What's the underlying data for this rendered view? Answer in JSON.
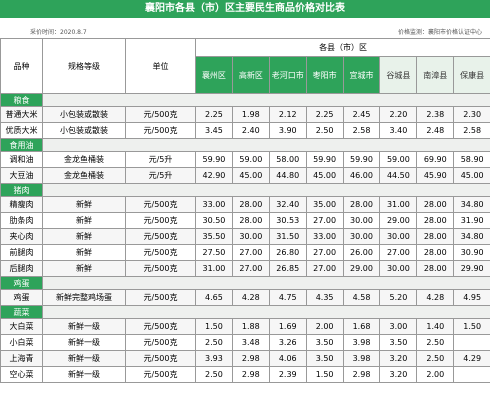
{
  "title": "襄阳市各县（市）区主要民生商品价格对比表",
  "date": "采价时间：2020.8.7",
  "source": "价格监测：襄阳市价格认证中心",
  "header": {
    "variety": "品种",
    "spec": "规格等级",
    "unit": "单位",
    "region_group": "各县（市）区",
    "regions": [
      "襄州区",
      "高新区",
      "老河口市",
      "枣阳市",
      "宜城市",
      "谷城县",
      "南漳县",
      "保康县"
    ]
  },
  "sections": [
    {
      "name": "粮食",
      "rows": [
        {
          "variety": "普通大米",
          "spec": "小包装或散装",
          "unit": "元/500克",
          "prices": [
            "2.25",
            "1.98",
            "2.12",
            "2.25",
            "2.45",
            "2.20",
            "2.38",
            "2.30"
          ]
        },
        {
          "variety": "优质大米",
          "spec": "小包装或散装",
          "unit": "元/500克",
          "prices": [
            "3.45",
            "2.40",
            "3.90",
            "2.50",
            "2.58",
            "3.40",
            "2.48",
            "2.58"
          ]
        }
      ]
    },
    {
      "name": "食用油",
      "rows": [
        {
          "variety": "调和油",
          "spec": "金龙鱼桶装",
          "unit": "元/5升",
          "prices": [
            "59.90",
            "59.00",
            "58.00",
            "59.90",
            "59.90",
            "59.00",
            "69.90",
            "58.90"
          ]
        },
        {
          "variety": "大豆油",
          "spec": "金龙鱼桶装",
          "unit": "元/5升",
          "prices": [
            "42.90",
            "45.00",
            "44.80",
            "45.00",
            "46.00",
            "44.50",
            "45.90",
            "45.00"
          ]
        }
      ]
    },
    {
      "name": "猪肉",
      "rows": [
        {
          "variety": "精瘦肉",
          "spec": "新鲜",
          "unit": "元/500克",
          "prices": [
            "33.00",
            "28.00",
            "32.40",
            "35.00",
            "28.00",
            "31.00",
            "28.00",
            "34.80"
          ]
        },
        {
          "variety": "肋条肉",
          "spec": "新鲜",
          "unit": "元/500克",
          "prices": [
            "30.50",
            "28.00",
            "30.53",
            "27.00",
            "30.00",
            "29.00",
            "28.00",
            "31.90"
          ]
        },
        {
          "variety": "夹心肉",
          "spec": "新鲜",
          "unit": "元/500克",
          "prices": [
            "35.50",
            "30.00",
            "31.50",
            "33.00",
            "30.00",
            "30.00",
            "28.00",
            "34.80"
          ]
        },
        {
          "variety": "前腿肉",
          "spec": "新鲜",
          "unit": "元/500克",
          "prices": [
            "27.50",
            "27.00",
            "26.80",
            "27.00",
            "26.00",
            "27.00",
            "28.00",
            "30.90"
          ]
        },
        {
          "variety": "后腿肉",
          "spec": "新鲜",
          "unit": "元/500克",
          "prices": [
            "31.00",
            "27.00",
            "26.85",
            "27.00",
            "29.00",
            "30.00",
            "28.00",
            "29.90"
          ]
        }
      ]
    },
    {
      "name": "鸡蛋",
      "rows": [
        {
          "variety": "鸡蛋",
          "spec": "新鲜完整鸡场蛋",
          "unit": "元/500克",
          "prices": [
            "4.65",
            "4.28",
            "4.75",
            "4.35",
            "4.58",
            "5.20",
            "4.28",
            "4.95"
          ]
        }
      ]
    },
    {
      "name": "蔬菜",
      "rows": [
        {
          "variety": "大白菜",
          "spec": "新鲜一级",
          "unit": "元/500克",
          "prices": [
            "1.50",
            "1.88",
            "1.69",
            "2.00",
            "1.68",
            "3.00",
            "1.40",
            "1.50"
          ]
        },
        {
          "variety": "小白菜",
          "spec": "新鲜一级",
          "unit": "元/500克",
          "prices": [
            "2.50",
            "3.48",
            "3.26",
            "3.50",
            "3.98",
            "3.50",
            "2.50",
            null
          ]
        },
        {
          "variety": "上海青",
          "spec": "新鲜一级",
          "unit": "元/500克",
          "prices": [
            "3.93",
            "2.98",
            "4.06",
            "3.50",
            "3.98",
            "3.20",
            "2.50",
            "4.29"
          ]
        },
        {
          "variety": "空心菜",
          "spec": "新鲜一级",
          "unit": "元/500克",
          "prices": [
            "2.50",
            "2.98",
            "2.39",
            "1.50",
            "2.98",
            "3.20",
            "2.00",
            null
          ]
        }
      ]
    }
  ]
}
